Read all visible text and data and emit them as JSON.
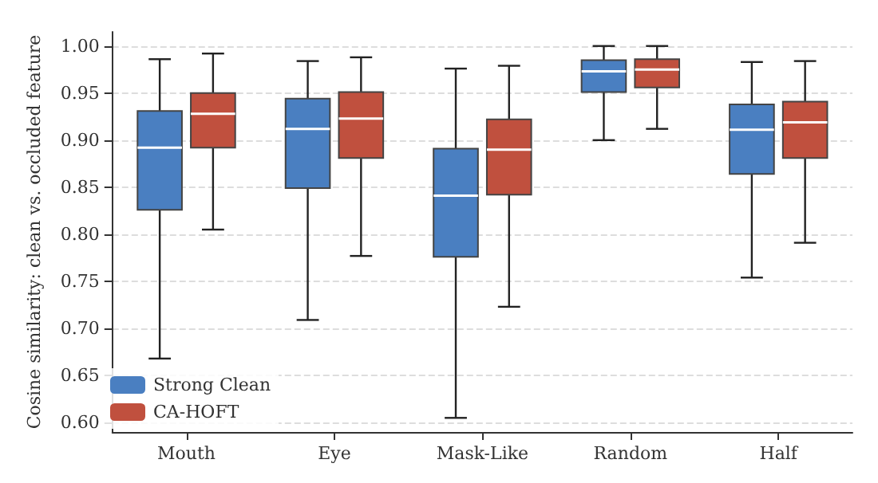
{
  "chart_data": {
    "type": "box",
    "ylabel": "Cosine similarity: clean vs. occluded feature",
    "categories": [
      "Mouth",
      "Eye",
      "Mask-Like",
      "Random",
      "Half"
    ],
    "ylim": [
      0.59,
      1.015
    ],
    "yticks": [
      {
        "value": 0.6,
        "label": "0.60"
      },
      {
        "value": 0.65,
        "label": "0.65"
      },
      {
        "value": 0.7,
        "label": "0.70"
      },
      {
        "value": 0.75,
        "label": "0.75"
      },
      {
        "value": 0.8,
        "label": "0.80"
      },
      {
        "value": 0.85,
        "label": "0.85"
      },
      {
        "value": 0.9,
        "label": "0.90"
      },
      {
        "value": 0.95,
        "label": "0.95"
      },
      {
        "value": 1.0,
        "label": "1.00"
      }
    ],
    "grid": "y",
    "legend": "bottom left",
    "series": [
      {
        "name": "Strong Clean",
        "color": "#4a7fc1",
        "boxes": [
          {
            "low": 0.668,
            "q1": 0.826,
            "median": 0.892,
            "q3": 0.931,
            "high": 0.986
          },
          {
            "low": 0.709,
            "q1": 0.849,
            "median": 0.912,
            "q3": 0.944,
            "high": 0.984
          },
          {
            "low": 0.605,
            "q1": 0.776,
            "median": 0.841,
            "q3": 0.891,
            "high": 0.976
          },
          {
            "low": 0.9,
            "q1": 0.951,
            "median": 0.973,
            "q3": 0.985,
            "high": 1.0
          },
          {
            "low": 0.754,
            "q1": 0.864,
            "median": 0.911,
            "q3": 0.938,
            "high": 0.983
          }
        ]
      },
      {
        "name": "CA-HOFT",
        "color": "#c0503e",
        "boxes": [
          {
            "low": 0.805,
            "q1": 0.892,
            "median": 0.928,
            "q3": 0.95,
            "high": 0.992
          },
          {
            "low": 0.777,
            "q1": 0.881,
            "median": 0.923,
            "q3": 0.951,
            "high": 0.988
          },
          {
            "low": 0.723,
            "q1": 0.842,
            "median": 0.89,
            "q3": 0.922,
            "high": 0.979
          },
          {
            "low": 0.912,
            "q1": 0.956,
            "median": 0.975,
            "q3": 0.986,
            "high": 1.0
          },
          {
            "low": 0.791,
            "q1": 0.881,
            "median": 0.919,
            "q3": 0.941,
            "high": 0.984
          }
        ]
      }
    ]
  }
}
